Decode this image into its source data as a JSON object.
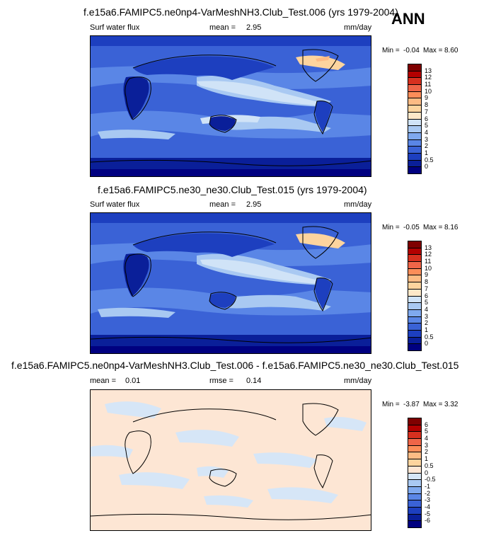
{
  "season": "ANN",
  "panels": [
    {
      "title": "f.e15a6.FAMIPC5.ne0np4-VarMeshNH3.Club_Test.006 (yrs 1979-2004)",
      "left_label": "Surf water flux",
      "stat_label": "mean =",
      "stat_value": "2.95",
      "units": "mm/day",
      "min_label": "Min =",
      "min_value": "-0.04",
      "max_label": "Max =",
      "max_value": "8.60"
    },
    {
      "title": "f.e15a6.FAMIPC5.ne30_ne30.Club_Test.015 (yrs 1979-2004)",
      "left_label": "Surf water flux",
      "stat_label": "mean =",
      "stat_value": "2.95",
      "units": "mm/day",
      "min_label": "Min =",
      "min_value": "-0.05",
      "max_label": "Max =",
      "max_value": "8.16"
    },
    {
      "title": "f.e15a6.FAMIPC5.ne0np4-VarMeshNH3.Club_Test.006 - f.e15a6.FAMIPC5.ne30_ne30.Club_Test.015",
      "mean_label": "mean =",
      "mean_value": "0.01",
      "rmse_label": "rmse =",
      "rmse_value": "0.14",
      "units": "mm/day",
      "min_label": "Min =",
      "min_value": "-3.87",
      "max_label": "Max =",
      "max_value": "3.32"
    }
  ],
  "chart_data": [
    {
      "type": "heatmap",
      "title": "f.e15a6.FAMIPC5.ne0np4-VarMeshNH3.Club_Test.006 (yrs 1979-2004)",
      "variable": "Surf water flux",
      "units": "mm/day",
      "mean": 2.95,
      "min": -0.04,
      "max": 8.6,
      "colorbar_levels": [
        "13",
        "12",
        "11",
        "10",
        "9",
        "8",
        "7",
        "6",
        "5",
        "4",
        "3",
        "2",
        "1",
        "0.5",
        "0"
      ],
      "colorbar_colors": [
        "#7f0000",
        "#b30000",
        "#d7301f",
        "#ef6548",
        "#fc8d59",
        "#fdbb84",
        "#fdd49e",
        "#fee8c8",
        "#d0e3f7",
        "#a9c9f2",
        "#7fa9ee",
        "#5a86e6",
        "#3a62d6",
        "#1d3fbf",
        "#0a1f99",
        "#000080"
      ]
    },
    {
      "type": "heatmap",
      "title": "f.e15a6.FAMIPC5.ne30_ne30.Club_Test.015 (yrs 1979-2004)",
      "variable": "Surf water flux",
      "units": "mm/day",
      "mean": 2.95,
      "min": -0.05,
      "max": 8.16,
      "colorbar_levels": [
        "13",
        "12",
        "11",
        "10",
        "9",
        "8",
        "7",
        "6",
        "5",
        "4",
        "3",
        "2",
        "1",
        "0.5",
        "0"
      ],
      "colorbar_colors": [
        "#7f0000",
        "#b30000",
        "#d7301f",
        "#ef6548",
        "#fc8d59",
        "#fdbb84",
        "#fdd49e",
        "#fee8c8",
        "#d0e3f7",
        "#a9c9f2",
        "#7fa9ee",
        "#5a86e6",
        "#3a62d6",
        "#1d3fbf",
        "#0a1f99",
        "#000080"
      ]
    },
    {
      "type": "heatmap",
      "title": "f.e15a6.FAMIPC5.ne0np4-VarMeshNH3.Club_Test.006 - f.e15a6.FAMIPC5.ne30_ne30.Club_Test.015",
      "units": "mm/day",
      "mean": 0.01,
      "rmse": 0.14,
      "min": -3.87,
      "max": 3.32,
      "colorbar_levels": [
        "6",
        "5",
        "4",
        "3",
        "2",
        "1",
        "0.5",
        "0",
        "-0.5",
        "-1",
        "-2",
        "-3",
        "-4",
        "-5",
        "-6"
      ],
      "colorbar_colors": [
        "#7f0000",
        "#b30000",
        "#d7301f",
        "#ef6548",
        "#fc8d59",
        "#fdbb84",
        "#fdd49e",
        "#fde6d4",
        "#d6e6f7",
        "#a9c9f2",
        "#7fa9ee",
        "#5a86e6",
        "#3a62d6",
        "#1d3fbf",
        "#0a1f99",
        "#000080"
      ]
    }
  ]
}
